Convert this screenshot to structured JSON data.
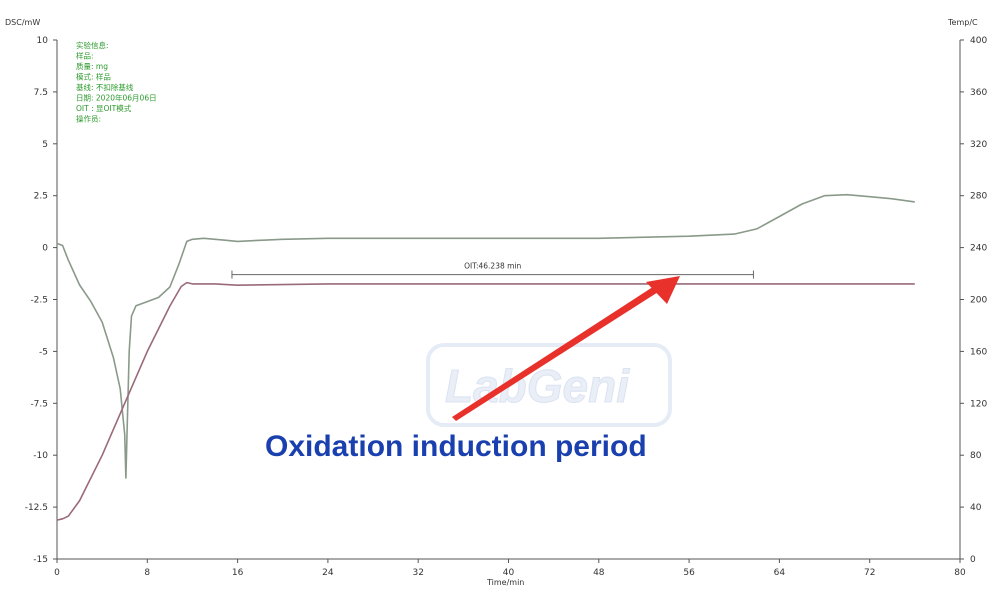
{
  "chart_data": {
    "type": "line",
    "xlabel": "Time/min",
    "ylabel_left": "DSC/mW",
    "ylabel_right": "Temp/C",
    "x_ticks": [
      0,
      8,
      16,
      24,
      32,
      40,
      48,
      56,
      64,
      72,
      80
    ],
    "xlim": [
      0,
      80
    ],
    "y_left_ticks": [
      "10",
      "7.5",
      "5",
      "2.5",
      "0",
      "-2.5",
      "-5",
      "-7.5",
      "-10",
      "-12.5",
      "-15"
    ],
    "ylim_left": [
      -15,
      10
    ],
    "y_right_ticks": [
      "400",
      "360",
      "320",
      "280",
      "240",
      "200",
      "160",
      "120",
      "80",
      "40",
      "0"
    ],
    "ylim_right": [
      0,
      400
    ],
    "grid": false,
    "series": [
      {
        "axis": "left",
        "color": "#8a9a8a",
        "x": [
          0,
          0.5,
          1,
          2,
          3,
          4,
          5,
          5.6,
          6,
          6.1,
          6.2,
          6.4,
          6.6,
          7,
          8,
          9,
          10,
          10.8,
          11.5,
          12,
          13,
          14,
          15,
          16,
          18,
          20,
          24,
          32,
          40,
          48,
          56,
          60,
          62,
          64,
          66,
          68,
          70,
          72,
          74,
          76
        ],
        "values": [
          0.2,
          0.1,
          -0.6,
          -1.8,
          -2.6,
          -3.6,
          -5.3,
          -6.8,
          -9.0,
          -11.1,
          -9.0,
          -5.0,
          -3.3,
          -2.8,
          -2.6,
          -2.4,
          -1.9,
          -0.8,
          0.3,
          0.4,
          0.45,
          0.4,
          0.35,
          0.3,
          0.35,
          0.4,
          0.45,
          0.45,
          0.45,
          0.45,
          0.55,
          0.65,
          0.9,
          1.5,
          2.1,
          2.5,
          2.55,
          2.45,
          2.35,
          2.2
        ]
      },
      {
        "axis": "right",
        "color": "#9a6a7a",
        "x": [
          0,
          0.5,
          1,
          2,
          4,
          6,
          8,
          10,
          11,
          11.5,
          12,
          14,
          16,
          24,
          32,
          40,
          48,
          56,
          64,
          72,
          76
        ],
        "values": [
          30,
          31,
          33,
          45,
          80,
          120,
          160,
          195,
          210,
          213,
          212,
          212,
          211,
          212,
          212,
          212,
          212,
          212,
          212,
          212,
          212
        ]
      }
    ],
    "oit_label": "OIT:46.238 min",
    "oit_range": [
      15.5,
      61.7
    ],
    "oit_y": -1.3,
    "legend_lines": [
      "实验信息:",
      "样品:",
      "质量: mg",
      "模式: 样品",
      "基线: 不扣除基线",
      "日期: 2020年06月06日",
      "OIT : 显OIT模式",
      "操作员:"
    ],
    "annotation": "Oxidation induction period",
    "annotation_color": "#1a3fae",
    "arrow_color": "#e8312a",
    "watermark": "LabGeni"
  }
}
